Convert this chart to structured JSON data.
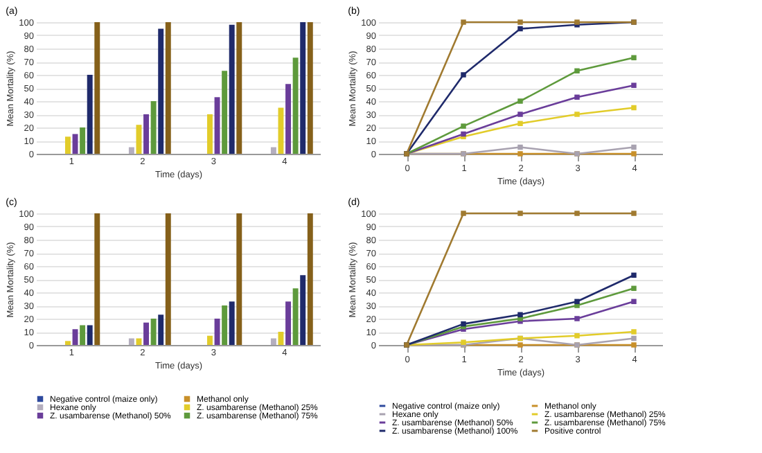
{
  "chart_data": [
    {
      "type": "bar",
      "title": "(a)",
      "xlabel": "Time (days)",
      "ylabel": "Mean Mortality (%)",
      "categories": [
        "1",
        "2",
        "3",
        "4"
      ],
      "ylim": [
        0,
        100
      ],
      "yticks": [
        0,
        10,
        20,
        30,
        40,
        50,
        60,
        70,
        80,
        90,
        100
      ],
      "grid": "y",
      "legend": false,
      "series": [
        {
          "color": "#2e4a9e",
          "values": [
            0,
            0,
            0,
            0
          ]
        },
        {
          "color": "#c8902a",
          "values": [
            0,
            0,
            0,
            0
          ]
        },
        {
          "color": "#b4aebe",
          "values": [
            0,
            5,
            0,
            5
          ]
        },
        {
          "color": "#e2cc2a",
          "values": [
            13,
            22,
            30,
            35
          ]
        },
        {
          "color": "#6a3d9a",
          "values": [
            15,
            30,
            43,
            53
          ]
        },
        {
          "color": "#5e9a3c",
          "values": [
            20,
            40,
            63,
            73
          ]
        },
        {
          "color": "#1f2a6b",
          "values": [
            60,
            95,
            98,
            100
          ]
        },
        {
          "color": "#85601a",
          "values": [
            100,
            100,
            100,
            100
          ]
        }
      ]
    },
    {
      "type": "line",
      "title": "(b)",
      "xlabel": "Time (days)",
      "ylabel": "Mean Mortality (%)",
      "categories": [
        "0",
        "1",
        "2",
        "3",
        "4"
      ],
      "ylim": [
        0,
        100
      ],
      "yticks": [
        0,
        10,
        20,
        30,
        40,
        50,
        60,
        70,
        80,
        90,
        100
      ],
      "grid": "y",
      "legend": false,
      "marker": "square",
      "series": [
        {
          "color": "#2e4a9e",
          "values": [
            null,
            null,
            null,
            null,
            null
          ]
        },
        {
          "color": "#c8902a",
          "values": [
            0,
            0,
            0,
            0,
            0
          ]
        },
        {
          "color": "#a8a2b0",
          "values": [
            0,
            0,
            5,
            0,
            5
          ]
        },
        {
          "color": "#e2cc2a",
          "values": [
            0,
            13,
            23,
            30,
            35
          ]
        },
        {
          "color": "#6a3d9a",
          "values": [
            0,
            15,
            30,
            43,
            52
          ]
        },
        {
          "color": "#5e9a3c",
          "values": [
            0,
            21,
            40,
            63,
            73
          ]
        },
        {
          "color": "#1f2a6b",
          "values": [
            0,
            60,
            95,
            98,
            100
          ]
        },
        {
          "color": "#a07a30",
          "values": [
            0,
            100,
            100,
            100,
            100
          ]
        }
      ]
    },
    {
      "type": "bar",
      "title": "(c)",
      "xlabel": "Time (days)",
      "ylabel": "Mean Mortality (%)",
      "categories": [
        "1",
        "2",
        "3",
        "4"
      ],
      "ylim": [
        0,
        100
      ],
      "yticks": [
        0,
        10,
        20,
        30,
        40,
        50,
        60,
        70,
        80,
        90,
        100
      ],
      "grid": "y",
      "legend": "bottom",
      "series": [
        {
          "name": "Negative control (maize only)",
          "color": "#2e4a9e",
          "values": [
            0,
            0,
            0,
            0
          ]
        },
        {
          "name": "Methanol only",
          "color": "#c8902a",
          "values": [
            0,
            0,
            0,
            0
          ]
        },
        {
          "name": "Hexane only",
          "color": "#b4aebe",
          "values": [
            0,
            5,
            0,
            5
          ]
        },
        {
          "name": "Z. usambarense (Methanol) 25%",
          "color": "#e2cc2a",
          "values": [
            3,
            5,
            7,
            10
          ]
        },
        {
          "name": "Z. usambarense  (Methanol) 50%",
          "color": "#6a3d9a",
          "values": [
            12,
            17,
            20,
            33
          ]
        },
        {
          "name": "Z. usambarense (Methanol) 75%",
          "color": "#5e9a3c",
          "values": [
            15,
            20,
            30,
            43
          ]
        },
        {
          "color": "#1f2a6b",
          "values": [
            15,
            23,
            33,
            53
          ]
        },
        {
          "color": "#85601a",
          "values": [
            100,
            100,
            100,
            100
          ]
        }
      ]
    },
    {
      "type": "line",
      "title": "(d)",
      "xlabel": "Time (days)",
      "ylabel": "Mean Mortality (%)",
      "categories": [
        "0",
        "1",
        "2",
        "3",
        "4"
      ],
      "ylim": [
        0,
        100
      ],
      "yticks": [
        0,
        10,
        20,
        30,
        40,
        50,
        60,
        70,
        80,
        90,
        100
      ],
      "grid": "y",
      "legend": "bottom",
      "marker": "square",
      "series": [
        {
          "name": "Negative control (maize only)",
          "color": "#2e4a9e",
          "values": [
            null,
            null,
            null,
            null,
            null
          ]
        },
        {
          "name": "Methanol only",
          "color": "#c8902a",
          "values": [
            0,
            0,
            0,
            0,
            0
          ]
        },
        {
          "name": "Hexane only",
          "color": "#a8a2b0",
          "values": [
            0,
            0,
            5,
            0,
            5
          ]
        },
        {
          "name": "Z. usambarense (Methanol) 25%",
          "color": "#e2cc2a",
          "values": [
            0,
            2,
            5,
            7,
            10
          ]
        },
        {
          "name": "Z. usambarense (Methanol) 50%",
          "color": "#6a3d9a",
          "values": [
            0,
            12,
            18,
            20,
            33
          ]
        },
        {
          "name": "Z. usambarense (Methanol) 75%",
          "color": "#5e9a3c",
          "values": [
            0,
            14,
            20,
            30,
            43
          ]
        },
        {
          "name": "Z. usambarense (Methanol) 100%",
          "color": "#1f2a6b",
          "values": [
            0,
            16,
            23,
            33,
            53
          ]
        },
        {
          "name": "Positive control",
          "color": "#a07a30",
          "values": [
            0,
            100,
            100,
            100,
            100
          ]
        }
      ]
    }
  ]
}
